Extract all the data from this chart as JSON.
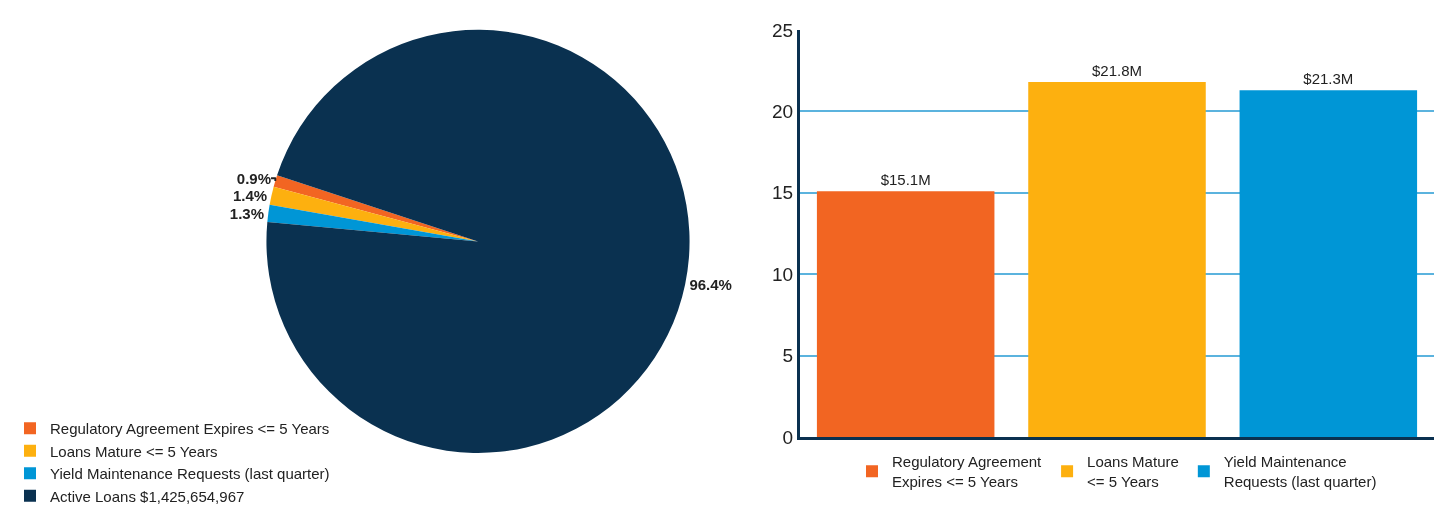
{
  "chart_data": [
    {
      "type": "pie",
      "categories": [
        "Regulatory Agreement Expires <= 5 Years",
        "Loans Mature <= 5 Years",
        "Yield Maintenance Requests (last quarter)",
        "Active Loans $1,425,654,967"
      ],
      "values": [
        0.9,
        1.4,
        1.3,
        96.4
      ],
      "value_labels": [
        "0.9%",
        "1.4%",
        "1.3%",
        "96.4%"
      ],
      "colors": [
        "#f26522",
        "#fdb00f",
        "#0096d6",
        "#0a3150"
      ],
      "legend": "bottom left"
    },
    {
      "type": "bar",
      "categories": [
        null,
        null,
        null
      ],
      "series": [
        {
          "name": "Regulatory Agreement Expires <= 5 Years",
          "color": "#f26522",
          "values": [
            15.1,
            null,
            null
          ],
          "value_labels": [
            "$15.1M",
            null,
            null
          ]
        },
        {
          "name": "Loans Mature <= 5 Years",
          "color": "#fdb00f",
          "values": [
            null,
            21.8,
            null
          ],
          "value_labels": [
            null,
            "$21.8M",
            null
          ]
        },
        {
          "name": "Yield Maintenance Requests (last quarter)",
          "color": "#0096d6",
          "values": [
            null,
            null,
            21.3
          ],
          "value_labels": [
            null,
            null,
            "$21.3M"
          ]
        }
      ],
      "ylim": [
        0,
        25
      ],
      "yticks": [
        0,
        5,
        10,
        15,
        20,
        25
      ],
      "grid": "y",
      "legend": "bottom",
      "tick_labels": "y"
    }
  ]
}
